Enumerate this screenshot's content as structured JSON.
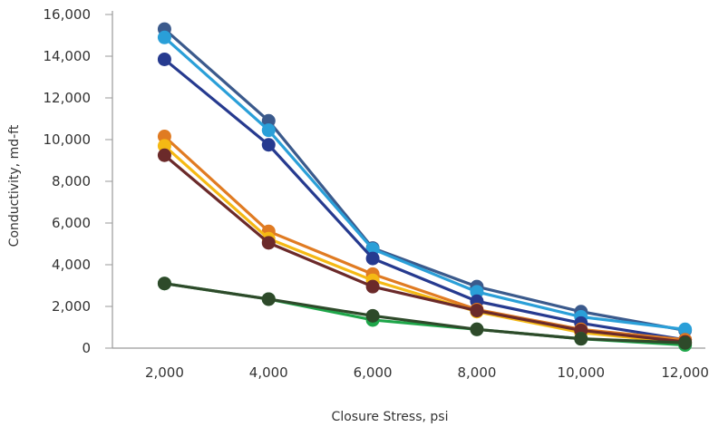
{
  "chart_data": {
    "type": "line",
    "title": "",
    "xlabel": "Closure Stress, psi",
    "ylabel": "Conductivity, md-ft",
    "x": [
      2000,
      4000,
      6000,
      8000,
      10000,
      12000
    ],
    "x_tick_labels": [
      "2,000",
      "4,000",
      "6,000",
      "8,000",
      "10,000",
      "12,000"
    ],
    "y_tick_values": [
      0,
      2000,
      4000,
      6000,
      8000,
      10000,
      12000,
      14000,
      16000
    ],
    "y_tick_labels": [
      "0",
      "2,000",
      "4,000",
      "6,000",
      "8,000",
      "10,000",
      "12,000",
      "14,000",
      "16,000"
    ],
    "xlim": [
      1000,
      12250
    ],
    "ylim": [
      0,
      16000
    ],
    "grid": false,
    "legend": "none",
    "series": [
      {
        "color": "#3b5a8c",
        "values": [
          15300,
          10900,
          4800,
          2950,
          1750,
          850
        ]
      },
      {
        "color": "#2a9fd8",
        "values": [
          14900,
          10450,
          4750,
          2700,
          1500,
          900
        ]
      },
      {
        "color": "#263a8f",
        "values": [
          13850,
          9750,
          4300,
          2250,
          1200,
          400
        ]
      },
      {
        "color": "#e07b22",
        "values": [
          10150,
          5600,
          3550,
          1850,
          900,
          400
        ]
      },
      {
        "color": "#f5b914",
        "values": [
          9700,
          5250,
          3250,
          1750,
          750,
          250
        ]
      },
      {
        "color": "#6b2a2a",
        "values": [
          9250,
          5050,
          2950,
          1800,
          850,
          300
        ]
      },
      {
        "color": "#1fa64a",
        "values": [
          3100,
          2350,
          1350,
          900,
          450,
          150
        ]
      },
      {
        "color": "#2e4a2a",
        "values": [
          3100,
          2350,
          1550,
          900,
          450,
          250
        ]
      }
    ]
  }
}
